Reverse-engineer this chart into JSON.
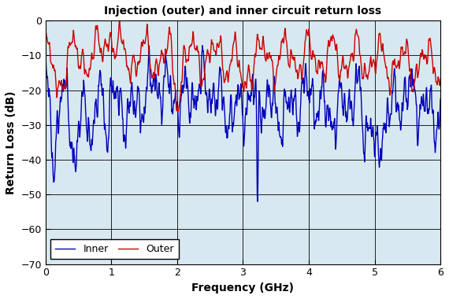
{
  "title": "Injection (outer) and inner circuit return loss",
  "xlabel": "Frequency (GHz)",
  "ylabel": "Return Loss (dB)",
  "xlim": [
    0,
    6
  ],
  "ylim": [
    -70,
    0
  ],
  "yticks": [
    0,
    -10,
    -20,
    -30,
    -40,
    -50,
    -60,
    -70
  ],
  "xticks": [
    0,
    1,
    2,
    3,
    4,
    5,
    6
  ],
  "inner_color": "#0000BB",
  "outer_color": "#CC0000",
  "legend_inner": "Inner",
  "legend_outer": "Outer",
  "linewidth": 1.0,
  "plot_bg_color": "#d8e8f0",
  "fig_bg_color": "#ffffff",
  "grid_color": "#000000",
  "title_fontsize": 10,
  "label_fontsize": 10,
  "tick_fontsize": 9
}
